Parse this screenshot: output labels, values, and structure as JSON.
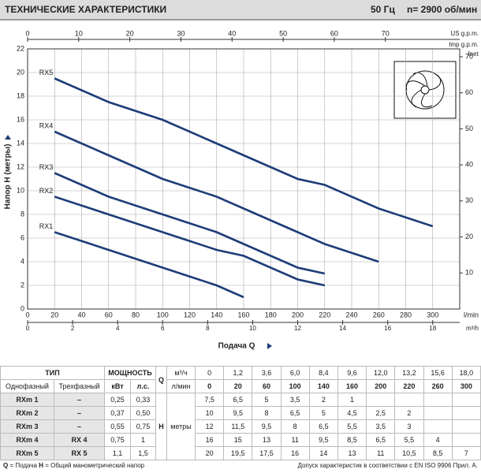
{
  "header": {
    "title": "ТЕХНИЧЕСКИЕ ХАРАКТЕРИСТИКИ",
    "frequency": "50 Гц",
    "speed": "n= 2900 об/мин"
  },
  "chart_data": {
    "type": "line",
    "x_label": "Подача Q",
    "x_unit": "l/min",
    "y_label": "Напор H (метры)",
    "xlim": [
      0,
      320
    ],
    "xticks": [
      0,
      20,
      40,
      60,
      80,
      100,
      120,
      140,
      160,
      180,
      200,
      220,
      240,
      260,
      280,
      300
    ],
    "ylim": [
      0,
      22
    ],
    "yticks": [
      0,
      2,
      4,
      6,
      8,
      10,
      12,
      14,
      16,
      18,
      20,
      22
    ],
    "y2_unit": "feet",
    "y2lim": [
      0,
      72.18
    ],
    "y2ticks": [
      10,
      20,
      30,
      40,
      50,
      60,
      70
    ],
    "x2_unit": "US g.p.m.",
    "x2lim": [
      0,
      84.54
    ],
    "x2ticks": [
      0,
      10,
      20,
      30,
      40,
      50,
      60,
      70
    ],
    "x3_unit": "Imp g.p.m.",
    "x4_unit": "m³/h",
    "x4lim": [
      0,
      19.2
    ],
    "x4ticks": [
      0,
      2,
      4,
      6,
      8,
      10,
      12,
      14,
      16,
      18
    ],
    "grid": true,
    "series": [
      {
        "name": "RX1",
        "color": "#1d3d78",
        "x": [
          20,
          60,
          100,
          140,
          160
        ],
        "values": [
          6.5,
          5,
          3.5,
          2,
          1
        ]
      },
      {
        "name": "RX2",
        "color": "#1d3d78",
        "x": [
          20,
          60,
          100,
          140,
          160,
          200,
          220
        ],
        "values": [
          9.5,
          8,
          6.5,
          5,
          4.5,
          2.5,
          2
        ]
      },
      {
        "name": "RX3",
        "color": "#1d3d78",
        "x": [
          20,
          60,
          100,
          140,
          160,
          200,
          220
        ],
        "values": [
          11.5,
          9.5,
          8,
          6.5,
          5.5,
          3.5,
          3
        ]
      },
      {
        "name": "RX4",
        "color": "#1d3d78",
        "x": [
          20,
          60,
          100,
          140,
          160,
          200,
          220,
          260
        ],
        "values": [
          15,
          13,
          11,
          9.5,
          8.5,
          6.5,
          5.5,
          4
        ]
      },
      {
        "name": "RX5",
        "color": "#1d3d78",
        "x": [
          20,
          60,
          100,
          140,
          160,
          200,
          220,
          260,
          300
        ],
        "values": [
          19.5,
          17.5,
          16,
          14,
          13,
          11,
          10.5,
          8.5,
          7
        ]
      }
    ]
  },
  "table": {
    "head": {
      "type": "ТИП",
      "single_phase": "Однофазный",
      "three_phase": "Трехфазный",
      "power": "МОЩНОСТЬ",
      "kw": "кВт",
      "hp": "л.с.",
      "q": "Q",
      "q_m3h": "м³/ч",
      "q_lmin": "л/мин",
      "h": "H",
      "h_unit": "метры"
    },
    "q_m3h": [
      "0",
      "1,2",
      "3,6",
      "6,0",
      "8,4",
      "9,6",
      "12,0",
      "13,2",
      "15,6",
      "18,0"
    ],
    "q_lmin": [
      "0",
      "20",
      "60",
      "100",
      "140",
      "160",
      "200",
      "220",
      "260",
      "300"
    ],
    "rows": [
      {
        "single": "RXm 1",
        "three": "–",
        "kw": "0,25",
        "hp": "0,33",
        "h": [
          "7,5",
          "6,5",
          "5",
          "3,5",
          "2",
          "1"
        ]
      },
      {
        "single": "RXm 2",
        "three": "–",
        "kw": "0,37",
        "hp": "0,50",
        "h": [
          "10",
          "9,5",
          "8",
          "6,5",
          "5",
          "4,5",
          "2,5",
          "2"
        ]
      },
      {
        "single": "RXm 3",
        "three": "–",
        "kw": "0,55",
        "hp": "0,75",
        "h": [
          "12",
          "11,5",
          "9,5",
          "8",
          "6,5",
          "5,5",
          "3,5",
          "3"
        ]
      },
      {
        "single": "RXm 4",
        "three": "RX 4",
        "kw": "0,75",
        "hp": "1",
        "h": [
          "16",
          "15",
          "13",
          "11",
          "9,5",
          "8,5",
          "6,5",
          "5,5",
          "4"
        ]
      },
      {
        "single": "RXm 5",
        "three": "RX 5",
        "kw": "1,1",
        "hp": "1,5",
        "h": [
          "20",
          "19,5",
          "17,5",
          "16",
          "14",
          "13",
          "11",
          "10,5",
          "8,5",
          "7"
        ]
      }
    ]
  },
  "footer": {
    "q_sym": "Q",
    "q_text": "= Подача",
    "h_sym": "H",
    "h_text": "= Общий манометрический напор",
    "note": "Допуск характеристик в соответствии с EN ISO 9906 Прил. A."
  }
}
